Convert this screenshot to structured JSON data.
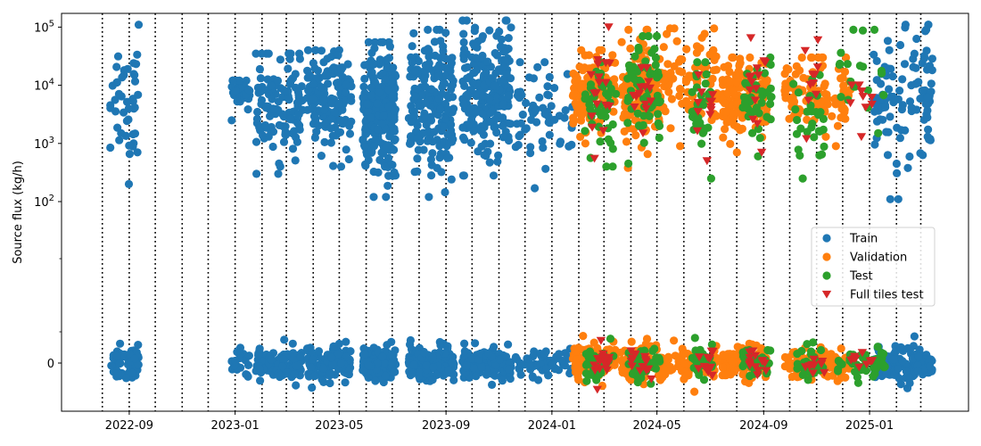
{
  "chart_data": {
    "type": "scatter",
    "title": "",
    "xlabel": "",
    "ylabel": "Source flux (kg/h)",
    "yscale": "symlog",
    "x_ticks": [
      "2022-09",
      "2023-01",
      "2023-05",
      "2023-09",
      "2024-01",
      "2024-05",
      "2024-09",
      "2025-01"
    ],
    "y_ticks": [
      "0",
      "10^2",
      "10^3",
      "10^4",
      "10^5"
    ],
    "xlim": [
      "2022-06-15",
      "2025-04-25"
    ],
    "ylim_note": "symlog, zero band at bottom, log decades 10^2 to 10^5",
    "vertical_dotted_lines": [
      "2022-08-01",
      "2022-09-01",
      "2022-10-01",
      "2022-11-01",
      "2022-12-01",
      "2023-01-01",
      "2023-02-01",
      "2023-03-01",
      "2023-04-01",
      "2023-05-01",
      "2023-06-01",
      "2023-07-01",
      "2023-08-01",
      "2023-09-01",
      "2023-10-01",
      "2023-11-01",
      "2023-12-01",
      "2024-01-01",
      "2024-02-01",
      "2024-03-01",
      "2024-04-01",
      "2024-05-01",
      "2024-06-01",
      "2024-07-01",
      "2024-08-01",
      "2024-09-01",
      "2024-10-01",
      "2024-11-01",
      "2024-12-01",
      "2025-01-01",
      "2025-02-01",
      "2025-03-01"
    ],
    "legend": {
      "placement": "center-right"
    },
    "series": [
      {
        "name": "Train",
        "color": "#1f77b4",
        "marker": "circle",
        "clusters": [
          {
            "x_start": "2022-08-10",
            "x_end": "2022-09-12",
            "flux_range": [
              200,
              110000
            ],
            "n_nonzero": 45,
            "n_zero": 60
          },
          {
            "x_start": "2022-12-28",
            "x_end": "2023-01-18",
            "flux_range": [
              2500,
              12000
            ],
            "n_nonzero": 30,
            "n_zero": 20
          },
          {
            "x_start": "2023-01-25",
            "x_end": "2023-03-20",
            "flux_range": [
              300,
              35000
            ],
            "n_nonzero": 120,
            "n_zero": 110
          },
          {
            "x_start": "2023-03-25",
            "x_end": "2023-05-15",
            "flux_range": [
              400,
              40000
            ],
            "n_nonzero": 150,
            "n_zero": 130
          },
          {
            "x_start": "2023-05-28",
            "x_end": "2023-07-05",
            "flux_range": [
              120,
              55000
            ],
            "n_nonzero": 260,
            "n_zero": 160
          },
          {
            "x_start": "2023-07-20",
            "x_end": "2023-09-10",
            "flux_range": [
              120,
              90000
            ],
            "n_nonzero": 200,
            "n_zero": 150
          },
          {
            "x_start": "2023-09-20",
            "x_end": "2023-11-15",
            "flux_range": [
              280,
              130000
            ],
            "n_nonzero": 220,
            "n_zero": 170
          },
          {
            "x_start": "2023-11-20",
            "x_end": "2024-01-25",
            "flux_range": [
              170,
              25000
            ],
            "n_nonzero": 60,
            "n_zero": 60
          },
          {
            "x_start": "2025-01-05",
            "x_end": "2025-03-15",
            "flux_range": [
              110,
              110000
            ],
            "n_nonzero": 110,
            "n_zero": 150
          }
        ]
      },
      {
        "name": "Validation",
        "color": "#ff7f0e",
        "marker": "circle",
        "clusters": [
          {
            "x_start": "2024-01-25",
            "x_end": "2024-03-15",
            "flux_range": [
              1000,
              40000
            ],
            "n_nonzero": 130,
            "n_zero": 100
          },
          {
            "x_start": "2024-03-20",
            "x_end": "2024-05-05",
            "flux_range": [
              380,
              90000
            ],
            "n_nonzero": 130,
            "n_zero": 90
          },
          {
            "x_start": "2024-05-05",
            "x_end": "2024-07-10",
            "flux_range": [
              900,
              95000
            ],
            "n_nonzero": 90,
            "n_zero": 80
          },
          {
            "x_start": "2024-07-15",
            "x_end": "2024-09-05",
            "flux_range": [
              700,
              30000
            ],
            "n_nonzero": 150,
            "n_zero": 110
          },
          {
            "x_start": "2024-09-25",
            "x_end": "2024-12-10",
            "flux_range": [
              900,
              30000
            ],
            "n_nonzero": 110,
            "n_zero": 120
          }
        ]
      },
      {
        "name": "Test",
        "color": "#2ca02c",
        "marker": "circle",
        "clusters": [
          {
            "x_start": "2024-02-08",
            "x_end": "2024-03-15",
            "flux_range": [
              400,
              25000
            ],
            "n_nonzero": 45,
            "n_zero": 40
          },
          {
            "x_start": "2024-03-28",
            "x_end": "2024-05-05",
            "flux_range": [
              450,
              70000
            ],
            "n_nonzero": 70,
            "n_zero": 50
          },
          {
            "x_start": "2024-06-10",
            "x_end": "2024-07-05",
            "flux_range": [
              250,
              25000
            ],
            "n_nonzero": 35,
            "n_zero": 30
          },
          {
            "x_start": "2024-08-08",
            "x_end": "2024-09-10",
            "flux_range": [
              600,
              30000
            ],
            "n_nonzero": 40,
            "n_zero": 35
          },
          {
            "x_start": "2024-10-05",
            "x_end": "2024-11-10",
            "flux_range": [
              250,
              15000
            ],
            "n_nonzero": 30,
            "n_zero": 35
          },
          {
            "x_start": "2024-11-25",
            "x_end": "2025-01-20",
            "flux_range": [
              1500,
              90000
            ],
            "n_nonzero": 20,
            "n_zero": 40
          }
        ]
      },
      {
        "name": "Full tiles test",
        "color": "#d62728",
        "marker": "triangle-down",
        "clusters": [
          {
            "x_start": "2024-02-15",
            "x_end": "2024-03-10",
            "flux_range": [
              550,
              100000
            ],
            "n_nonzero": 18,
            "n_zero": 18
          },
          {
            "x_start": "2024-04-01",
            "x_end": "2024-04-25",
            "flux_range": [
              1500,
              20000
            ],
            "n_nonzero": 14,
            "n_zero": 14
          },
          {
            "x_start": "2024-06-15",
            "x_end": "2024-07-05",
            "flux_range": [
              500,
              15000
            ],
            "n_nonzero": 12,
            "n_zero": 12
          },
          {
            "x_start": "2024-08-15",
            "x_end": "2024-09-05",
            "flux_range": [
              700,
              65000
            ],
            "n_nonzero": 14,
            "n_zero": 14
          },
          {
            "x_start": "2024-10-15",
            "x_end": "2024-11-10",
            "flux_range": [
              1200,
              60000
            ],
            "n_nonzero": 10,
            "n_zero": 10
          },
          {
            "x_start": "2024-12-05",
            "x_end": "2025-01-05",
            "flux_range": [
              1300,
              10000
            ],
            "n_nonzero": 10,
            "n_zero": 10
          }
        ]
      }
    ]
  }
}
